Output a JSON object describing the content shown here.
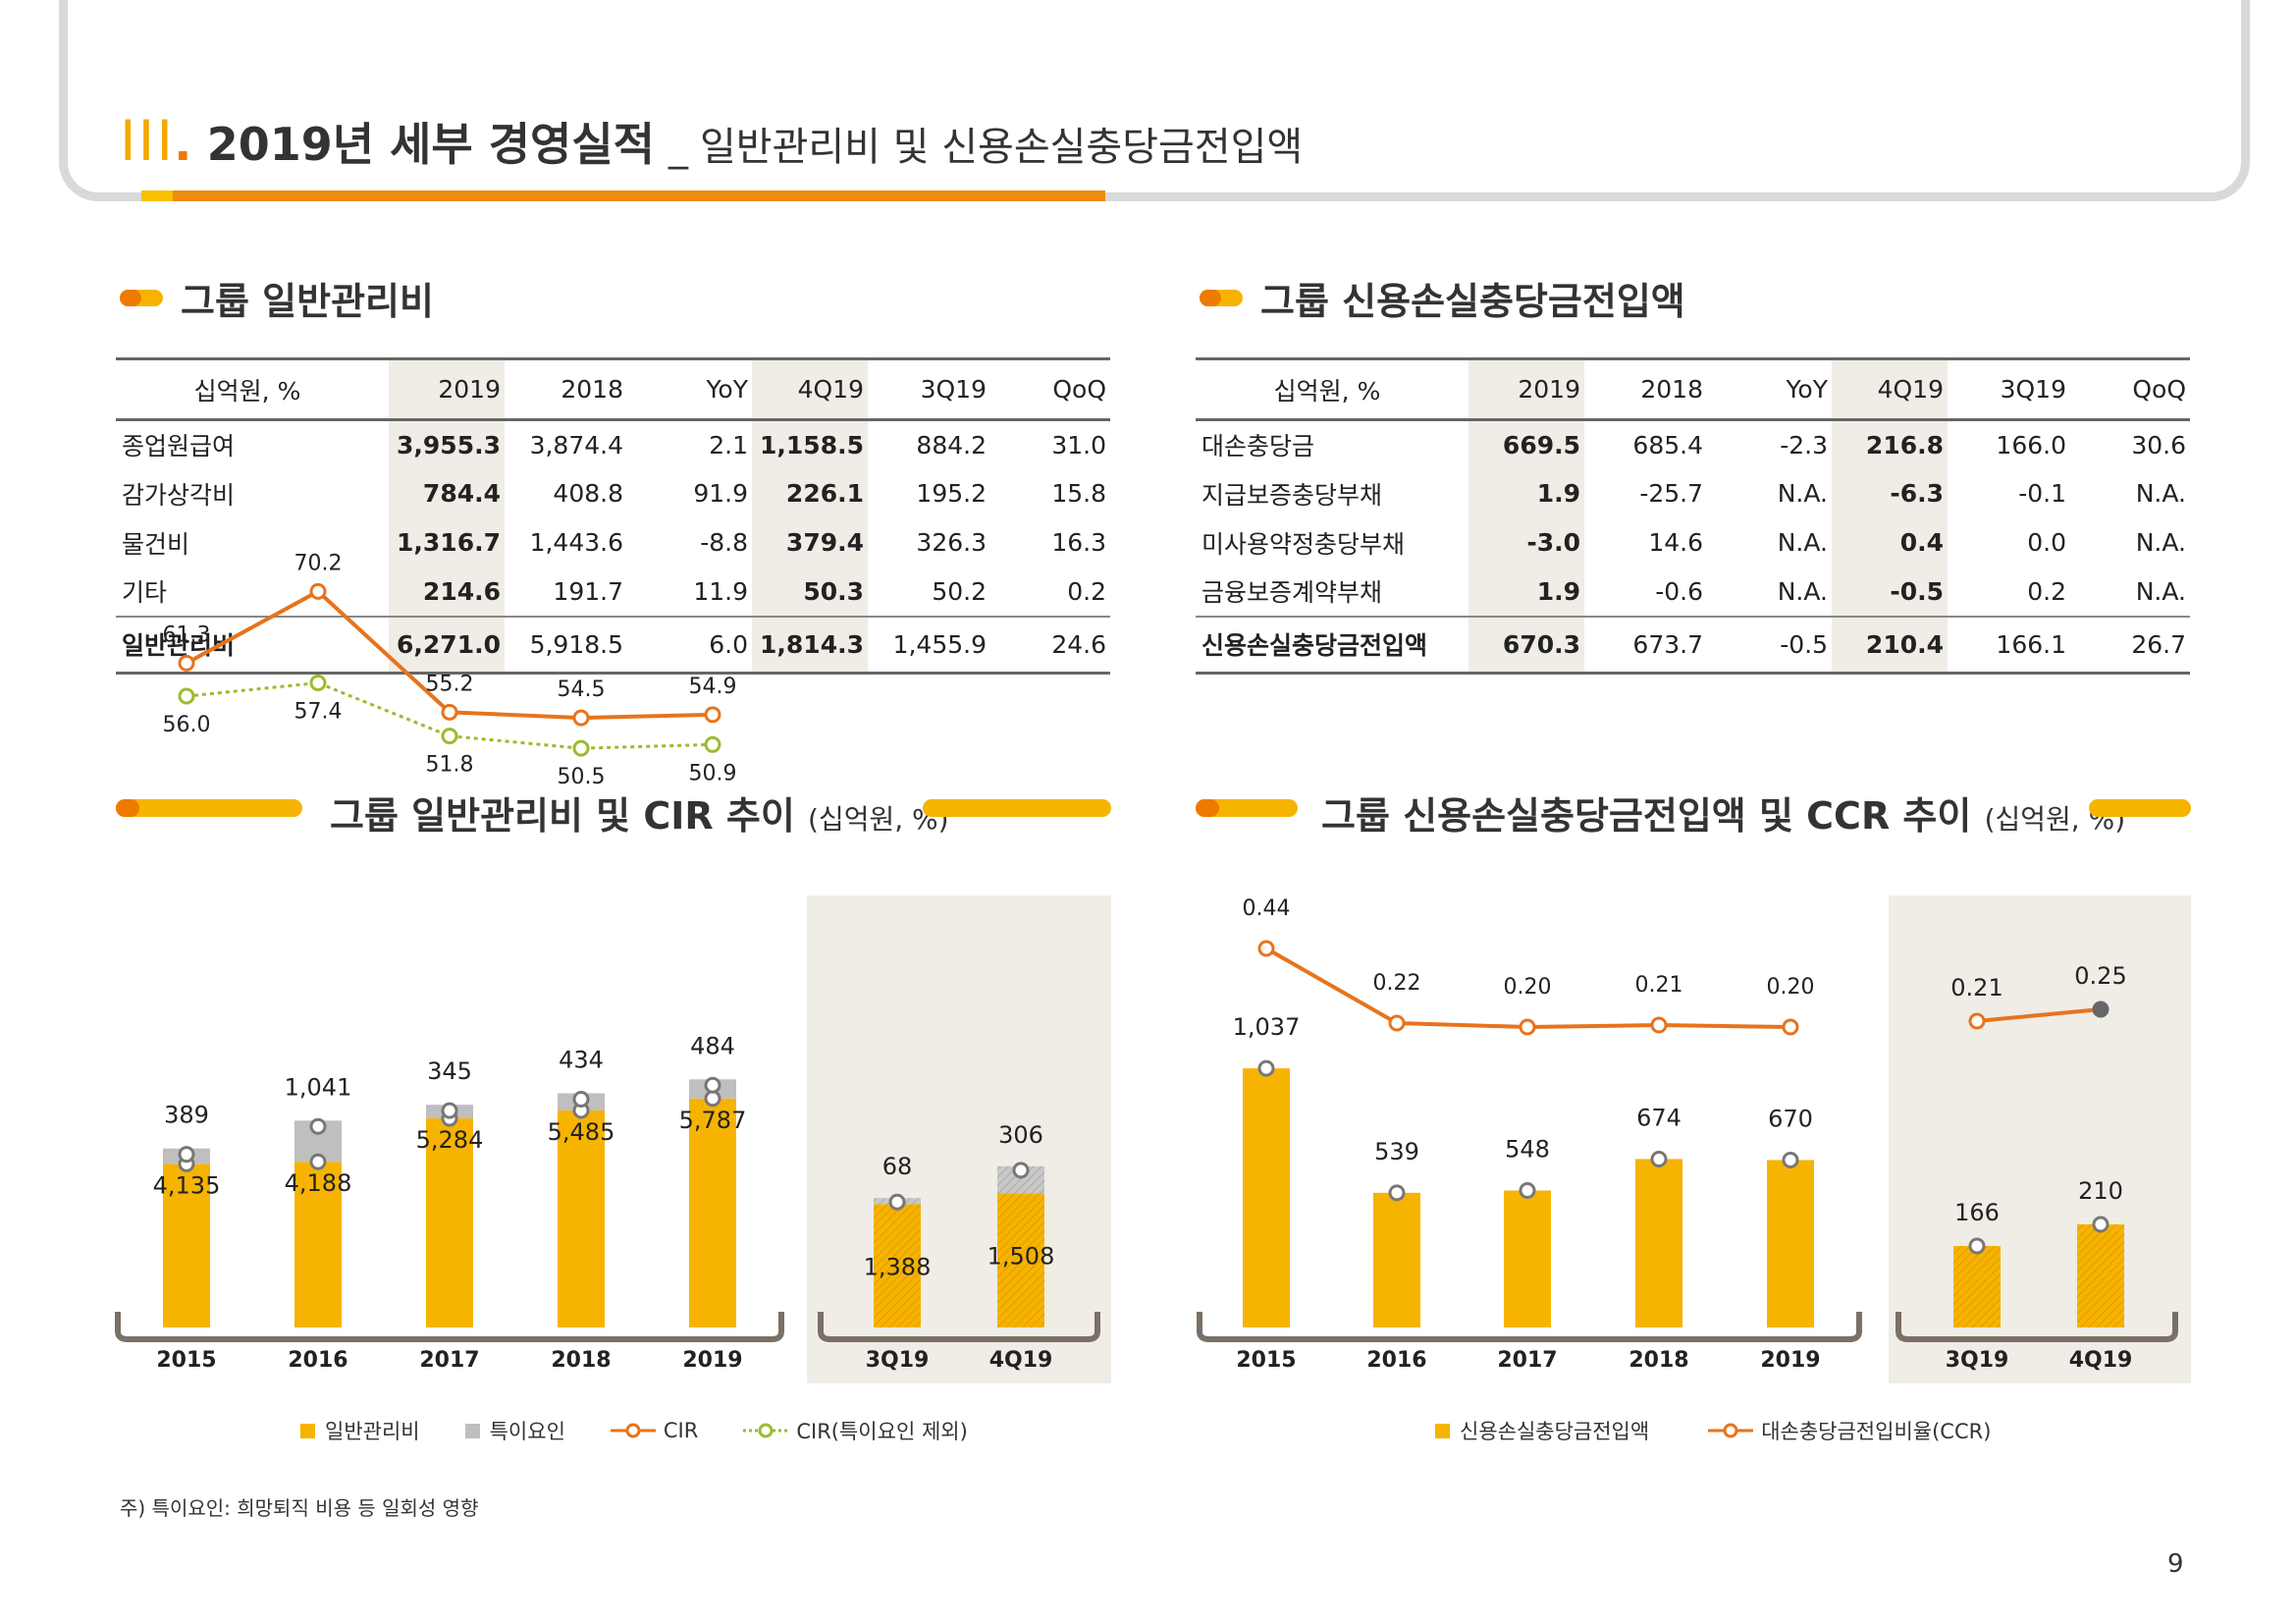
{
  "header": {
    "roman": "III",
    "roman_dot": ".",
    "title": "2019년 세부 경영실적",
    "separator": "_",
    "subtitle": "일반관리비 및 신용손실충당금전입액"
  },
  "left_table": {
    "section_title": "그룹 일반관리비",
    "columns": [
      "십억원, %",
      "2019",
      "2018",
      "YoY",
      "4Q19",
      "3Q19",
      "QoQ"
    ],
    "rows": [
      [
        "종업원급여",
        "3,955.3",
        "3,874.4",
        "2.1",
        "1,158.5",
        "884.2",
        "31.0"
      ],
      [
        "감가상각비",
        "784.4",
        "408.8",
        "91.9",
        "226.1",
        "195.2",
        "15.8"
      ],
      [
        "물건비",
        "1,316.7",
        "1,443.6",
        "-8.8",
        "379.4",
        "326.3",
        "16.3"
      ],
      [
        "기타",
        "214.6",
        "191.7",
        "11.9",
        "50.3",
        "50.2",
        "0.2"
      ]
    ],
    "total": [
      "일반관리비",
      "6,271.0",
      "5,918.5",
      "6.0",
      "1,814.3",
      "1,455.9",
      "24.6"
    ]
  },
  "right_table": {
    "section_title": "그룹 신용손실충당금전입액",
    "columns": [
      "십억원, %",
      "2019",
      "2018",
      "YoY",
      "4Q19",
      "3Q19",
      "QoQ"
    ],
    "rows": [
      [
        "대손충당금",
        "669.5",
        "685.4",
        "-2.3",
        "216.8",
        "166.0",
        "30.6"
      ],
      [
        "지급보증충당부채",
        "1.9",
        "-25.7",
        "N.A.",
        "-6.3",
        "-0.1",
        "N.A."
      ],
      [
        "미사용약정충당부채",
        "-3.0",
        "14.6",
        "N.A.",
        "0.4",
        "0.0",
        "N.A."
      ],
      [
        "금융보증계약부채",
        "1.9",
        "-0.6",
        "N.A.",
        "-0.5",
        "0.2",
        "N.A."
      ]
    ],
    "total": [
      "신용손실충당금전입액",
      "670.3",
      "673.7",
      "-0.5",
      "210.4",
      "166.1",
      "26.7"
    ]
  },
  "left_chart_title": {
    "main": "그룹 일반관리비 및 CIR 추이 ",
    "unit": "(십억원, %)"
  },
  "right_chart_title": {
    "main": "그룹 신용손실충당금전입액 및 CCR 추이 ",
    "unit": "(십억원, %)"
  },
  "legend_left": [
    "일반관리비",
    "특이요인",
    "CIR",
    "CIR(특이요인 제외)"
  ],
  "legend_right": [
    "신용손실충당금전입액",
    "대손충당금전입비율(CCR)"
  ],
  "colors": {
    "bar": "#f6b400",
    "special": "#bfbfbf",
    "line": "#e8731c",
    "line2": "#9bbb2e",
    "panel": "#f0ece6",
    "axis": "#7a7066"
  },
  "chart_data": [
    {
      "type": "bar",
      "categories": [
        "2015",
        "2016",
        "2017",
        "2018",
        "2019"
      ],
      "series": [
        {
          "name": "일반관리비",
          "values": [
            4135,
            4188,
            5284,
            5485,
            5787
          ]
        },
        {
          "name": "특이요인",
          "values": [
            389,
            1041,
            345,
            434,
            484
          ]
        },
        {
          "name": "CIR",
          "values": [
            61.3,
            70.2,
            55.2,
            54.5,
            54.9
          ]
        },
        {
          "name": "CIR(특이요인 제외)",
          "values": [
            56.0,
            57.4,
            51.8,
            50.5,
            50.9
          ]
        }
      ],
      "labels_base": [
        "4,135",
        "4,188",
        "5,284",
        "5,485",
        "5,787"
      ],
      "labels_special": [
        "389",
        "1,041",
        "345",
        "434",
        "484"
      ],
      "labels_cir": [
        "61.3",
        "70.2",
        "55.2",
        "54.5",
        "54.9"
      ],
      "labels_cir2": [
        "56.0",
        "57.4",
        "51.8",
        "50.5",
        "50.9"
      ]
    },
    {
      "type": "bar",
      "categories": [
        "3Q19",
        "4Q19"
      ],
      "series": [
        {
          "name": "일반관리비",
          "values": [
            1388,
            1508
          ]
        },
        {
          "name": "특이요인",
          "values": [
            68,
            306
          ]
        }
      ],
      "labels_base": [
        "1,388",
        "1,508"
      ],
      "labels_special": [
        "68",
        "306"
      ]
    },
    {
      "type": "bar",
      "categories": [
        "2015",
        "2016",
        "2017",
        "2018",
        "2019"
      ],
      "series": [
        {
          "name": "신용손실충당금전입액",
          "values": [
            1037,
            539,
            548,
            674,
            670
          ]
        },
        {
          "name": "대손충당금전입비율(CCR)",
          "values": [
            0.44,
            0.22,
            0.2,
            0.21,
            0.2
          ]
        }
      ],
      "labels_bar": [
        "1,037",
        "539",
        "548",
        "674",
        "670"
      ],
      "labels_line": [
        "0.44",
        "0.22",
        "0.20",
        "0.21",
        "0.20"
      ]
    },
    {
      "type": "bar",
      "categories": [
        "3Q19",
        "4Q19"
      ],
      "series": [
        {
          "name": "신용손실충당금전입액",
          "values": [
            166,
            210
          ]
        },
        {
          "name": "대손충당금전입비율(CCR)",
          "values": [
            0.21,
            0.25
          ]
        }
      ],
      "labels_bar": [
        "166",
        "210"
      ],
      "labels_line": [
        "0.21",
        "0.25"
      ]
    }
  ],
  "footnote": "주) 특이요인: 희망퇴직 비용 등 일회성 영향",
  "page_number": "9"
}
